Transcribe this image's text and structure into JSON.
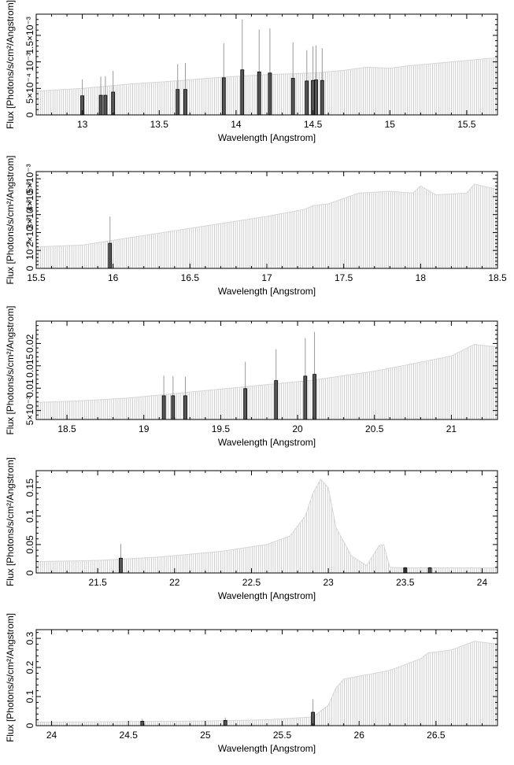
{
  "chart_data": [
    {
      "type": "area",
      "xlabel": "Wavelength [Angstrom]",
      "ylabel": "Flux [Photons/s/cm²/Angstrom]",
      "xlim": [
        12.7,
        15.7
      ],
      "ylim": [
        0,
        0.0019
      ],
      "xticks": [
        13,
        13.5,
        14,
        14.5,
        15,
        15.5
      ],
      "yticks": [
        0,
        0.0005,
        0.001,
        0.0015
      ],
      "ytick_labels": [
        "0",
        "5×10⁻⁴",
        "10⁻³",
        "1.5×10⁻³"
      ],
      "grid": false,
      "series": [
        {
          "x": [
            12.7,
            13.0,
            13.3,
            13.6,
            13.9,
            14.2,
            14.5,
            14.7,
            14.85,
            15.0,
            15.1,
            15.25,
            15.4,
            15.55,
            15.7
          ],
          "y": [
            0.00045,
            0.0005,
            0.00058,
            0.00064,
            0.00071,
            0.00076,
            0.00079,
            0.00084,
            0.0009,
            0.00088,
            0.00092,
            0.00096,
            0.001,
            0.00104,
            0.00108
          ]
        }
      ],
      "markers": [
        {
          "x": 13.0,
          "y": 0.00036,
          "err": 0.00031
        },
        {
          "x": 13.12,
          "y": 0.00037,
          "err": 0.00035
        },
        {
          "x": 13.15,
          "y": 0.00037,
          "err": 0.00036
        },
        {
          "x": 13.2,
          "y": 0.00043,
          "err": 0.0004
        },
        {
          "x": 13.62,
          "y": 0.00048,
          "err": 0.00048
        },
        {
          "x": 13.67,
          "y": 0.00048,
          "err": 0.0005
        },
        {
          "x": 13.92,
          "y": 0.0007,
          "err": 0.00065
        },
        {
          "x": 14.04,
          "y": 0.00085,
          "err": 0.00095
        },
        {
          "x": 14.15,
          "y": 0.00081,
          "err": 0.0008
        },
        {
          "x": 14.22,
          "y": 0.00079,
          "err": 0.00084
        },
        {
          "x": 14.37,
          "y": 0.00069,
          "err": 0.00068
        },
        {
          "x": 14.46,
          "y": 0.00064,
          "err": 0.00058
        },
        {
          "x": 14.5,
          "y": 0.00065,
          "err": 0.00064
        },
        {
          "x": 14.52,
          "y": 0.00066,
          "err": 0.00065
        },
        {
          "x": 14.56,
          "y": 0.00065,
          "err": 0.00061
        }
      ]
    },
    {
      "type": "area",
      "xlabel": "Wavelength [Angstrom]",
      "ylabel": "Flux [Photons/s/cm²/Angstrom]",
      "xlim": [
        15.5,
        18.5
      ],
      "ylim": [
        0,
        0.0054
      ],
      "xticks": [
        15.5,
        16,
        16.5,
        17,
        17.5,
        18,
        18.5
      ],
      "yticks": [
        0,
        0.001,
        0.002,
        0.003,
        0.004,
        0.005
      ],
      "ytick_labels": [
        "0",
        "10⁻³",
        "2×10⁻³",
        "3×10⁻³",
        "4×10⁻³",
        "5×10⁻³"
      ],
      "grid": false,
      "series": [
        {
          "x": [
            15.5,
            15.8,
            16.1,
            16.4,
            16.7,
            17.0,
            17.25,
            17.3,
            17.4,
            17.6,
            17.8,
            17.95,
            18.0,
            18.1,
            18.3,
            18.35,
            18.5
          ],
          "y": [
            0.0012,
            0.0013,
            0.0017,
            0.0021,
            0.0025,
            0.0029,
            0.0033,
            0.0035,
            0.0036,
            0.0042,
            0.0043,
            0.0042,
            0.0046,
            0.0041,
            0.0042,
            0.0047,
            0.0044
          ]
        }
      ],
      "markers": [
        {
          "x": 15.98,
          "y": 0.0014,
          "err": 0.0015
        }
      ]
    },
    {
      "type": "area",
      "xlabel": "Wavelength [Angstrom]",
      "ylabel": "Flux [Photons/s/cm²/Angstrom]",
      "xlim": [
        18.3,
        21.3
      ],
      "ylim": [
        0.003,
        0.025
      ],
      "xticks": [
        18.5,
        19,
        19.5,
        20,
        20.5,
        21
      ],
      "yticks": [
        0.005,
        0.01,
        0.015,
        0.02
      ],
      "ytick_labels": [
        "5×10⁻³",
        "0.01",
        "0.015",
        "0.02"
      ],
      "grid": false,
      "series": [
        {
          "x": [
            18.3,
            18.6,
            18.9,
            19.2,
            19.5,
            19.8,
            20.1,
            20.3,
            20.5,
            20.8,
            21.0,
            21.15,
            21.3
          ],
          "y": [
            0.0068,
            0.0072,
            0.0078,
            0.0088,
            0.0098,
            0.0108,
            0.0118,
            0.0128,
            0.0138,
            0.0158,
            0.0172,
            0.0198,
            0.0192
          ]
        }
      ],
      "markers": [
        {
          "x": 19.13,
          "y": 0.0083,
          "err": 0.0045
        },
        {
          "x": 19.19,
          "y": 0.0083,
          "err": 0.0044
        },
        {
          "x": 19.27,
          "y": 0.0083,
          "err": 0.0043
        },
        {
          "x": 19.66,
          "y": 0.0099,
          "err": 0.006
        },
        {
          "x": 19.86,
          "y": 0.0117,
          "err": 0.007
        },
        {
          "x": 20.05,
          "y": 0.0127,
          "err": 0.0085
        },
        {
          "x": 20.11,
          "y": 0.0131,
          "err": 0.0095
        }
      ]
    },
    {
      "type": "area",
      "xlabel": "Wavelength [Angstrom]",
      "ylabel": "Flux [Photons/s/cm²/Angstrom]",
      "xlim": [
        21.1,
        24.1
      ],
      "ylim": [
        0,
        0.18
      ],
      "xticks": [
        21.5,
        22,
        22.5,
        23,
        23.5,
        24
      ],
      "yticks": [
        0,
        0.05,
        0.1,
        0.15
      ],
      "ytick_labels": [
        "0",
        "0.05",
        "0.1",
        "0.15"
      ],
      "grid": false,
      "series": [
        {
          "x": [
            21.1,
            21.5,
            21.9,
            22.3,
            22.6,
            22.75,
            22.85,
            22.9,
            22.95,
            23.0,
            23.05,
            23.15,
            23.25,
            23.33,
            23.36,
            23.4,
            23.5,
            24.1
          ],
          "y": [
            0.02,
            0.022,
            0.028,
            0.038,
            0.05,
            0.065,
            0.1,
            0.14,
            0.165,
            0.15,
            0.08,
            0.03,
            0.013,
            0.048,
            0.05,
            0.01,
            0.009,
            0.009
          ]
        }
      ],
      "markers": [
        {
          "x": 21.65,
          "y": 0.026,
          "err": 0.025
        },
        {
          "x": 23.5,
          "y": 0.009,
          "err": 0.002
        },
        {
          "x": 23.66,
          "y": 0.009,
          "err": 0.002
        }
      ]
    },
    {
      "type": "area",
      "xlabel": "Wavelength [Angstrom]",
      "ylabel": "Flux [Photons/s/cm²/Angstrom]",
      "xlim": [
        23.9,
        26.9
      ],
      "ylim": [
        0,
        0.33
      ],
      "xticks": [
        24,
        24.5,
        25,
        25.5,
        26,
        26.5
      ],
      "yticks": [
        0,
        0.1,
        0.2,
        0.3
      ],
      "ytick_labels": [
        "0",
        "0.1",
        "0.2",
        "0.3"
      ],
      "grid": false,
      "series": [
        {
          "x": [
            23.9,
            24.5,
            25.0,
            25.4,
            25.7,
            25.8,
            25.85,
            25.9,
            26.2,
            26.4,
            26.45,
            26.6,
            26.75,
            26.9
          ],
          "y": [
            0.012,
            0.014,
            0.016,
            0.02,
            0.03,
            0.07,
            0.13,
            0.16,
            0.19,
            0.23,
            0.25,
            0.26,
            0.29,
            0.28
          ]
        }
      ],
      "markers": [
        {
          "x": 24.59,
          "y": 0.015,
          "err": 0.008
        },
        {
          "x": 25.13,
          "y": 0.018,
          "err": 0.01
        },
        {
          "x": 25.7,
          "y": 0.046,
          "err": 0.045
        }
      ]
    }
  ]
}
